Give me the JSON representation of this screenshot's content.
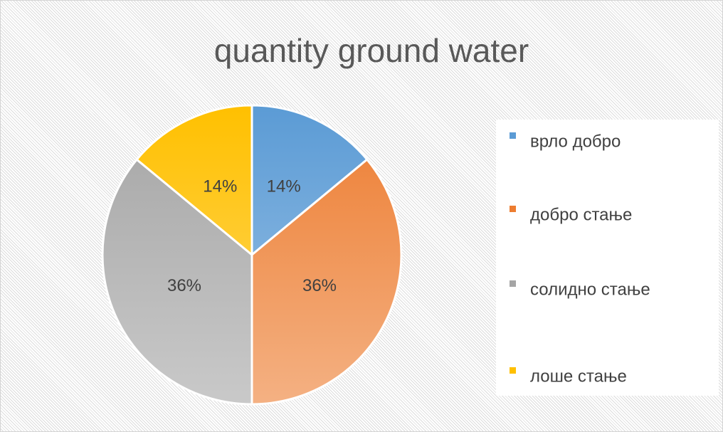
{
  "chart_data": {
    "type": "pie",
    "title": "quantity ground water",
    "categories": [
      "врло добро",
      "добро стање",
      "солидно стање",
      "лоше стање"
    ],
    "values": [
      14,
      36,
      36,
      14
    ],
    "value_labels": [
      "14%",
      "36%",
      "36%",
      "14%"
    ],
    "colors": [
      "#5b9bd5",
      "#ed7d31",
      "#a5a5a5",
      "#ffc000"
    ],
    "legend": "right"
  }
}
